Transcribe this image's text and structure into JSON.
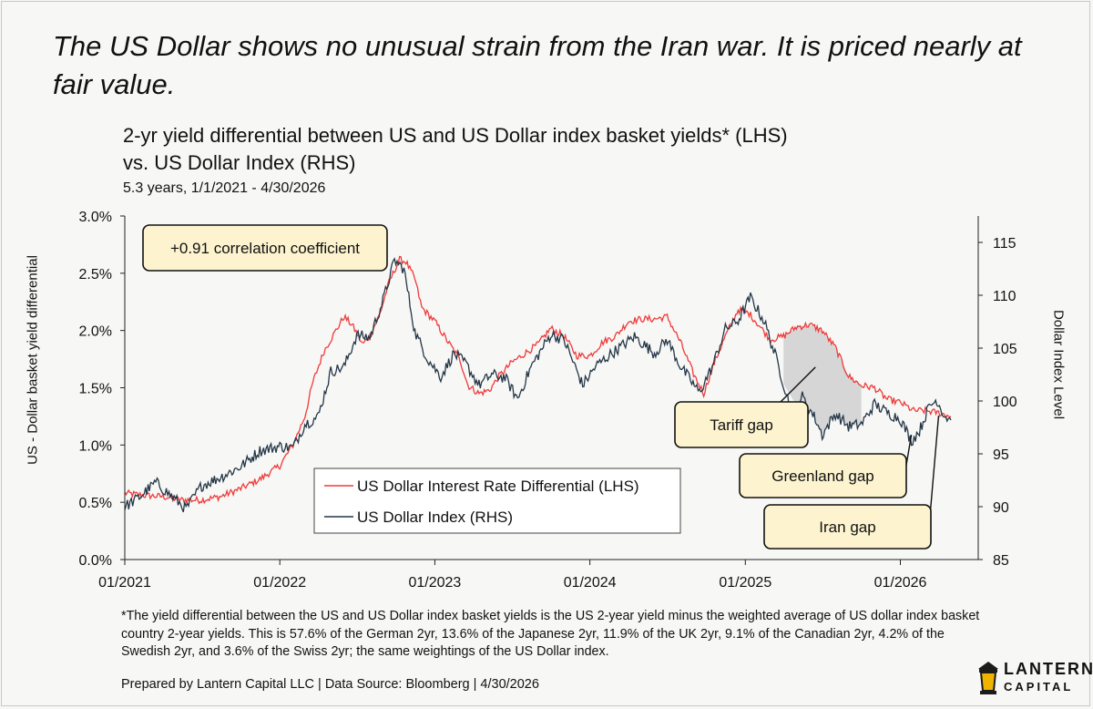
{
  "headline": "The US Dollar shows no unusual strain from the Iran war. It is priced nearly at fair value.",
  "colors": {
    "differential": "#ee3b3b",
    "index": "#243748",
    "shade": "#d6d6d6",
    "annotation": "#fdf3cf"
  },
  "chart_data": {
    "type": "line",
    "title_line1": "2-yr yield differential between US and US Dollar index basket yields* (LHS)",
    "title_line2": "vs. US Dollar Index (RHS)",
    "subtitle": "5.3 years, 1/1/2021 - 4/30/2026",
    "ylabel_left": "US - Dollar basket yield differential",
    "ylabel_right": "Dollar Index Level",
    "x_ticks": [
      "01/2021",
      "01/2022",
      "01/2023",
      "01/2024",
      "01/2025",
      "01/2026"
    ],
    "x_range": [
      "2021-01-01",
      "2026-04-30"
    ],
    "y_left_ticks": [
      "0.0%",
      "0.5%",
      "1.0%",
      "1.5%",
      "2.0%",
      "2.5%",
      "3.0%"
    ],
    "y_left_range": [
      0,
      3
    ],
    "y_right_ticks": [
      "85",
      "90",
      "95",
      "100",
      "105",
      "110",
      "115"
    ],
    "y_right_range": [
      85,
      117.5
    ],
    "grid": false,
    "legend_position": "bottom-center",
    "correlation_label": "+0.91 correlation coefficient",
    "series": [
      {
        "name": "US Dollar Interest Rate Differential (LHS)",
        "axis": "left",
        "points": [
          [
            "2021-01-01",
            0.58
          ],
          [
            "2021-02-15",
            0.56
          ],
          [
            "2021-04-01",
            0.55
          ],
          [
            "2021-05-15",
            0.52
          ],
          [
            "2021-07-01",
            0.52
          ],
          [
            "2021-08-15",
            0.55
          ],
          [
            "2021-10-01",
            0.62
          ],
          [
            "2021-11-15",
            0.7
          ],
          [
            "2022-01-01",
            0.82
          ],
          [
            "2022-02-01",
            1.0
          ],
          [
            "2022-03-01",
            1.25
          ],
          [
            "2022-03-20",
            1.55
          ],
          [
            "2022-04-15",
            1.82
          ],
          [
            "2022-05-10",
            1.98
          ],
          [
            "2022-06-01",
            2.12
          ],
          [
            "2022-06-20",
            2.05
          ],
          [
            "2022-07-15",
            1.88
          ],
          [
            "2022-08-01",
            1.95
          ],
          [
            "2022-08-25",
            2.15
          ],
          [
            "2022-09-15",
            2.42
          ],
          [
            "2022-10-10",
            2.62
          ],
          [
            "2022-10-25",
            2.6
          ],
          [
            "2022-11-15",
            2.45
          ],
          [
            "2022-12-01",
            2.2
          ],
          [
            "2023-01-01",
            2.08
          ],
          [
            "2023-02-01",
            1.9
          ],
          [
            "2023-03-01",
            1.75
          ],
          [
            "2023-03-20",
            1.52
          ],
          [
            "2023-04-15",
            1.45
          ],
          [
            "2023-05-10",
            1.48
          ],
          [
            "2023-06-01",
            1.6
          ],
          [
            "2023-07-01",
            1.72
          ],
          [
            "2023-08-01",
            1.8
          ],
          [
            "2023-09-01",
            1.88
          ],
          [
            "2023-10-01",
            2.02
          ],
          [
            "2023-11-01",
            1.95
          ],
          [
            "2023-12-01",
            1.78
          ],
          [
            "2024-01-01",
            1.78
          ],
          [
            "2024-02-01",
            1.9
          ],
          [
            "2024-03-01",
            1.95
          ],
          [
            "2024-04-01",
            2.08
          ],
          [
            "2024-05-01",
            2.1
          ],
          [
            "2024-06-01",
            2.1
          ],
          [
            "2024-07-01",
            2.12
          ],
          [
            "2024-08-01",
            1.9
          ],
          [
            "2024-09-01",
            1.62
          ],
          [
            "2024-09-25",
            1.45
          ],
          [
            "2024-10-20",
            1.72
          ],
          [
            "2024-11-15",
            1.95
          ],
          [
            "2024-12-15",
            2.18
          ],
          [
            "2025-01-10",
            2.15
          ],
          [
            "2025-02-01",
            2.05
          ],
          [
            "2025-03-01",
            1.92
          ],
          [
            "2025-04-01",
            1.95
          ],
          [
            "2025-05-01",
            2.03
          ],
          [
            "2025-06-01",
            2.05
          ],
          [
            "2025-07-01",
            2.0
          ],
          [
            "2025-08-01",
            1.85
          ],
          [
            "2025-09-01",
            1.6
          ],
          [
            "2025-10-01",
            1.52
          ],
          [
            "2025-11-01",
            1.5
          ],
          [
            "2025-12-01",
            1.4
          ],
          [
            "2026-01-01",
            1.37
          ],
          [
            "2026-02-01",
            1.3
          ],
          [
            "2026-03-01",
            1.3
          ],
          [
            "2026-04-01",
            1.28
          ],
          [
            "2026-04-30",
            1.25
          ]
        ]
      },
      {
        "name": "US Dollar Index (RHS)",
        "axis": "right",
        "points": [
          [
            "2021-01-01",
            90.0
          ],
          [
            "2021-02-01",
            90.8
          ],
          [
            "2021-03-15",
            92.3
          ],
          [
            "2021-04-15",
            91.2
          ],
          [
            "2021-05-25",
            89.8
          ],
          [
            "2021-07-01",
            92.0
          ],
          [
            "2021-08-15",
            92.8
          ],
          [
            "2021-10-01",
            93.8
          ],
          [
            "2021-11-15",
            95.3
          ],
          [
            "2022-01-01",
            95.7
          ],
          [
            "2022-02-01",
            95.6
          ],
          [
            "2022-03-01",
            97.8
          ],
          [
            "2022-04-01",
            98.5
          ],
          [
            "2022-05-01",
            102.8
          ],
          [
            "2022-06-01",
            103.2
          ],
          [
            "2022-07-01",
            106.2
          ],
          [
            "2022-08-01",
            106.0
          ],
          [
            "2022-09-01",
            109.5
          ],
          [
            "2022-09-28",
            113.3
          ],
          [
            "2022-10-20",
            112.5
          ],
          [
            "2022-11-15",
            106.5
          ],
          [
            "2022-12-15",
            104.0
          ],
          [
            "2023-01-15",
            102.3
          ],
          [
            "2023-02-15",
            104.5
          ],
          [
            "2023-03-15",
            103.5
          ],
          [
            "2023-04-15",
            101.5
          ],
          [
            "2023-05-15",
            102.5
          ],
          [
            "2023-06-15",
            102.2
          ],
          [
            "2023-07-15",
            100.2
          ],
          [
            "2023-08-15",
            103.2
          ],
          [
            "2023-10-01",
            106.3
          ],
          [
            "2023-11-01",
            105.8
          ],
          [
            "2023-12-15",
            101.5
          ],
          [
            "2024-01-15",
            103.3
          ],
          [
            "2024-02-15",
            104.3
          ],
          [
            "2024-04-15",
            106.1
          ],
          [
            "2024-06-01",
            104.5
          ],
          [
            "2024-07-01",
            105.8
          ],
          [
            "2024-08-01",
            103.3
          ],
          [
            "2024-09-15",
            100.8
          ],
          [
            "2024-10-15",
            103.2
          ],
          [
            "2024-11-15",
            106.8
          ],
          [
            "2024-12-15",
            107.6
          ],
          [
            "2025-01-13",
            109.8
          ],
          [
            "2025-02-15",
            107.5
          ],
          [
            "2025-03-15",
            104.0
          ],
          [
            "2025-04-20",
            99.0
          ],
          [
            "2025-05-15",
            100.4
          ],
          [
            "2025-06-15",
            98.3
          ],
          [
            "2025-07-01",
            96.8
          ],
          [
            "2025-08-01",
            98.8
          ],
          [
            "2025-09-01",
            97.6
          ],
          [
            "2025-10-01",
            97.8
          ],
          [
            "2025-11-01",
            99.7
          ],
          [
            "2025-12-01",
            98.9
          ],
          [
            "2026-01-01",
            98.3
          ],
          [
            "2026-01-27",
            96.2
          ],
          [
            "2026-02-15",
            97.2
          ],
          [
            "2026-03-10",
            99.5
          ],
          [
            "2026-03-28",
            100.1
          ],
          [
            "2026-04-15",
            98.6
          ],
          [
            "2026-04-30",
            98.2
          ]
        ]
      }
    ],
    "shaded_band_dates": [
      "2025-04-01",
      "2025-05-01",
      "2025-06-01",
      "2025-07-01",
      "2025-08-01",
      "2025-09-01",
      "2025-10-01"
    ],
    "annotations": [
      {
        "label": "Tariff gap",
        "target_date": "2025-06-15",
        "target_axis": "left",
        "target_value": 1.68
      },
      {
        "label": "Greenland gap",
        "target_date": "2026-01-27",
        "target_axis": "right",
        "target_value": 96.8
      },
      {
        "label": "Iran gap",
        "target_date": "2026-04-01",
        "target_axis": "right",
        "target_value": 98.6
      }
    ]
  },
  "footnote": "*The yield differential between the US and US Dollar index basket yields is the US 2-year yield minus the weighted average of US dollar index basket country 2-year yields. This is 57.6% of the German 2yr, 13.6% of the Japanese 2yr, 11.9% of the UK 2yr, 9.1% of the Canadian 2yr, 4.2% of the Swedish 2yr, and 3.6% of the Swiss 2yr; the same weightings of the US Dollar index.",
  "credit": "Prepared by Lantern Capital LLC | Data Source: Bloomberg | 4/30/2026",
  "logo": {
    "name": "LANTERN",
    "sub": "CAPITAL",
    "icon": "lantern-icon"
  }
}
